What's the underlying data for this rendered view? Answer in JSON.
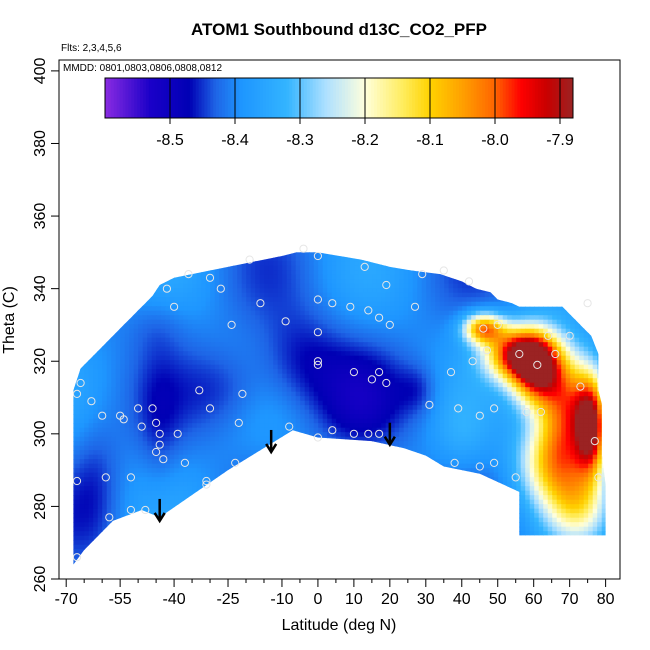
{
  "chart_data": {
    "type": "heatmap",
    "title": "ATOM1 Southbound d13C_CO2_PFP",
    "subtitle_flights": "Flts: 2,3,4,5,6",
    "subtitle_dates": "MMDD: 0801,0803,0806,0808,0812",
    "xlabel": "Latitude (deg N)",
    "ylabel": "Theta (C)",
    "xlim": [
      -72,
      84
    ],
    "ylim": [
      260,
      403
    ],
    "x_ticks": [
      -70,
      -55,
      -40,
      -25,
      -10,
      0,
      10,
      20,
      30,
      40,
      50,
      60,
      70,
      80
    ],
    "x_tick_labels": [
      "-70",
      "-55",
      "-40",
      "-25",
      "-10",
      "0",
      "10",
      "20",
      "30",
      "40",
      "50",
      "60",
      "70",
      "80"
    ],
    "x_minor_ticks": [
      -65,
      -60,
      -50,
      -45,
      -35,
      -30,
      -20,
      -15,
      -5,
      5,
      15,
      25,
      35,
      45,
      55,
      65,
      75
    ],
    "y_ticks": [
      260,
      280,
      300,
      320,
      340,
      360,
      380,
      400
    ],
    "y_tick_labels": [
      "260",
      "280",
      "300",
      "320",
      "340",
      "360",
      "380",
      "400"
    ],
    "colorbar": {
      "min": -8.6,
      "max": -7.88,
      "stops": [
        {
          "v": -8.6,
          "c": "#8a2be2"
        },
        {
          "v": -8.53,
          "c": "#1a00c8"
        },
        {
          "v": -8.47,
          "c": "#0000b4"
        },
        {
          "v": -8.43,
          "c": "#1e64e6"
        },
        {
          "v": -8.39,
          "c": "#1e96ff"
        },
        {
          "v": -8.32,
          "c": "#33b4ff"
        },
        {
          "v": -8.26,
          "c": "#aee0ff"
        },
        {
          "v": -8.2,
          "c": "#ffffdc"
        },
        {
          "v": -8.14,
          "c": "#ffec5a"
        },
        {
          "v": -8.1,
          "c": "#ffd200"
        },
        {
          "v": -8.05,
          "c": "#ffa000"
        },
        {
          "v": -8.0,
          "c": "#ff6400"
        },
        {
          "v": -7.96,
          "c": "#ff0000"
        },
        {
          "v": -7.92,
          "c": "#c80000"
        },
        {
          "v": -7.88,
          "c": "#9b2323"
        }
      ],
      "ticks": [
        -8.5,
        -8.4,
        -8.3,
        -8.2,
        -8.1,
        -8.0,
        -7.9
      ],
      "tick_labels": [
        "-8.5",
        "-8.4",
        "-8.3",
        "-8.2",
        "-8.1",
        "-8.0",
        "-7.9"
      ]
    },
    "domain_top": [
      [
        -68,
        312
      ],
      [
        -66,
        318
      ],
      [
        -64,
        320
      ],
      [
        -62,
        322
      ],
      [
        -60,
        324
      ],
      [
        -58,
        326
      ],
      [
        -56,
        328
      ],
      [
        -54,
        330
      ],
      [
        -52,
        332
      ],
      [
        -50,
        334
      ],
      [
        -48,
        336
      ],
      [
        -46,
        338
      ],
      [
        -44,
        341
      ],
      [
        -40,
        343
      ],
      [
        -30,
        345
      ],
      [
        -20,
        347
      ],
      [
        -15,
        348
      ],
      [
        -10,
        349
      ],
      [
        -6,
        350
      ],
      [
        0,
        350
      ],
      [
        6,
        349
      ],
      [
        12,
        348
      ],
      [
        20,
        346
      ],
      [
        26,
        345
      ],
      [
        34,
        344
      ],
      [
        40,
        342
      ],
      [
        44,
        340
      ],
      [
        48,
        339
      ],
      [
        50,
        337
      ],
      [
        54,
        336
      ],
      [
        56,
        335
      ],
      [
        68,
        335
      ],
      [
        70,
        333
      ],
      [
        72,
        331
      ],
      [
        74,
        329
      ],
      [
        76,
        327
      ],
      [
        78,
        322
      ],
      [
        78,
        312
      ],
      [
        79,
        308
      ],
      [
        79,
        294
      ],
      [
        80,
        286
      ],
      [
        80,
        272
      ]
    ],
    "domain_bottom": [
      [
        80,
        272
      ],
      [
        56,
        272
      ],
      [
        56,
        284
      ],
      [
        45,
        289
      ],
      [
        35,
        291
      ],
      [
        30,
        294
      ],
      [
        24,
        296
      ],
      [
        15,
        298
      ],
      [
        0,
        299
      ],
      [
        -7,
        301
      ],
      [
        -25,
        290
      ],
      [
        -44,
        277
      ],
      [
        -49,
        279
      ],
      [
        -57,
        276
      ],
      [
        -65,
        268
      ],
      [
        -68,
        264
      ]
    ],
    "background_value": -8.4,
    "anomalies": [
      {
        "lat": 61,
        "theta": 318,
        "value": -7.94,
        "sx": 5,
        "sy": 7
      },
      {
        "lat": 55,
        "theta": 322,
        "value": -8.0,
        "sx": 6,
        "sy": 5
      },
      {
        "lat": 70,
        "theta": 308,
        "value": -8.02,
        "sx": 6,
        "sy": 10
      },
      {
        "lat": 76,
        "theta": 302,
        "value": -8.0,
        "sx": 3,
        "sy": 9
      },
      {
        "lat": 66,
        "theta": 292,
        "value": -8.12,
        "sx": 7,
        "sy": 8
      },
      {
        "lat": 46,
        "theta": 329,
        "value": -8.05,
        "sx": 4,
        "sy": 3
      },
      {
        "lat": 72,
        "theta": 280,
        "value": -8.22,
        "sx": 6,
        "sy": 7
      },
      {
        "lat": -5,
        "theta": 319,
        "value": -8.48,
        "sx": 9,
        "sy": 10
      },
      {
        "lat": 12,
        "theta": 309,
        "value": -8.46,
        "sx": 8,
        "sy": 9
      },
      {
        "lat": 28,
        "theta": 312,
        "value": -8.45,
        "sx": 4,
        "sy": 5
      },
      {
        "lat": -44,
        "theta": 300,
        "value": -8.43,
        "sx": 4,
        "sy": 14
      },
      {
        "lat": -62,
        "theta": 288,
        "value": -8.44,
        "sx": 5,
        "sy": 14
      },
      {
        "lat": -25,
        "theta": 312,
        "value": -8.45,
        "sx": 8,
        "sy": 8
      },
      {
        "lat": -45,
        "theta": 330,
        "value": -8.43,
        "sx": 6,
        "sy": 6
      },
      {
        "lat": 40,
        "theta": 300,
        "value": -8.36,
        "sx": 5,
        "sy": 7
      }
    ],
    "samples": [
      [
        -67,
        266
      ],
      [
        -67,
        287
      ],
      [
        -67,
        311
      ],
      [
        -66,
        314
      ],
      [
        -63,
        309
      ],
      [
        -60,
        305
      ],
      [
        -59,
        288
      ],
      [
        -58,
        277
      ],
      [
        -55,
        305
      ],
      [
        -54,
        304
      ],
      [
        -52,
        288
      ],
      [
        -52,
        279
      ],
      [
        -50,
        307
      ],
      [
        -49,
        302
      ],
      [
        -48,
        279
      ],
      [
        -46,
        307
      ],
      [
        -45,
        303
      ],
      [
        -45,
        295
      ],
      [
        -44,
        300
      ],
      [
        -44,
        297
      ],
      [
        -43,
        293
      ],
      [
        -42,
        340
      ],
      [
        -40,
        335
      ],
      [
        -39,
        300
      ],
      [
        -37,
        292
      ],
      [
        -36,
        344
      ],
      [
        -33,
        312
      ],
      [
        -31,
        287
      ],
      [
        -31,
        286
      ],
      [
        -30,
        307
      ],
      [
        -30,
        343
      ],
      [
        -27,
        340
      ],
      [
        -24,
        330
      ],
      [
        -23,
        292
      ],
      [
        -22,
        303
      ],
      [
        -21,
        311
      ],
      [
        -19,
        348
      ],
      [
        -16,
        336
      ],
      [
        -9,
        331
      ],
      [
        -8,
        302
      ],
      [
        -4,
        351
      ],
      [
        0,
        349
      ],
      [
        0,
        337
      ],
      [
        0,
        328
      ],
      [
        0,
        320
      ],
      [
        0,
        319
      ],
      [
        0,
        299
      ],
      [
        4,
        336
      ],
      [
        4,
        301
      ],
      [
        9,
        335
      ],
      [
        10,
        317
      ],
      [
        10,
        300
      ],
      [
        13,
        346
      ],
      [
        14,
        334
      ],
      [
        14,
        300
      ],
      [
        15,
        315
      ],
      [
        17,
        332
      ],
      [
        17,
        317
      ],
      [
        17,
        300
      ],
      [
        19,
        341
      ],
      [
        19,
        314
      ],
      [
        20,
        330
      ],
      [
        27,
        335
      ],
      [
        29,
        344
      ],
      [
        31,
        308
      ],
      [
        35,
        345
      ],
      [
        37,
        317
      ],
      [
        38,
        292
      ],
      [
        39,
        307
      ],
      [
        42,
        342
      ],
      [
        43,
        320
      ],
      [
        45,
        291
      ],
      [
        45,
        305
      ],
      [
        46,
        329
      ],
      [
        47,
        323
      ],
      [
        49,
        307
      ],
      [
        49,
        292
      ],
      [
        50,
        330
      ],
      [
        55,
        288
      ],
      [
        56,
        322
      ],
      [
        58,
        306
      ],
      [
        61,
        319
      ],
      [
        62,
        306
      ],
      [
        64,
        327
      ],
      [
        66,
        322
      ],
      [
        70,
        327
      ],
      [
        73,
        313
      ],
      [
        75,
        336
      ],
      [
        77,
        298
      ],
      [
        78,
        288
      ]
    ],
    "arrows": [
      {
        "lat": -44,
        "theta": 276
      },
      {
        "lat": -13,
        "theta": 295
      },
      {
        "lat": 20,
        "theta": 297
      }
    ]
  }
}
